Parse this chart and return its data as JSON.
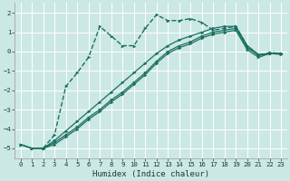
{
  "xlabel": "Humidex (Indice chaleur)",
  "background_color": "#cce8e4",
  "grid_color": "#ffffff",
  "line_color": "#1a7060",
  "xlim": [
    -0.5,
    23.5
  ],
  "ylim": [
    -5.5,
    2.5
  ],
  "xticks": [
    0,
    1,
    2,
    3,
    4,
    5,
    6,
    7,
    8,
    9,
    10,
    11,
    12,
    13,
    14,
    15,
    16,
    17,
    18,
    19,
    20,
    21,
    22,
    23
  ],
  "yticks": [
    -5,
    -4,
    -3,
    -2,
    -1,
    0,
    1,
    2
  ],
  "line1_x": [
    0,
    1,
    2,
    3,
    4,
    5,
    6,
    7,
    8,
    9,
    10,
    11,
    12,
    13,
    14,
    15,
    16,
    17,
    18,
    19,
    20,
    21,
    22,
    23
  ],
  "line1_y": [
    -4.8,
    -5.0,
    -5.0,
    -4.6,
    -4.1,
    -3.6,
    -3.1,
    -2.6,
    -2.1,
    -1.6,
    -1.1,
    -0.6,
    -0.1,
    0.3,
    0.6,
    0.8,
    1.0,
    1.2,
    1.3,
    1.3,
    0.3,
    -0.15,
    -0.1,
    -0.15
  ],
  "line2_x": [
    0,
    1,
    2,
    3,
    4,
    5,
    6,
    7,
    8,
    9,
    10,
    11,
    12,
    13,
    14,
    15,
    16,
    17,
    18,
    19,
    20,
    21,
    22,
    23
  ],
  "line2_y": [
    -4.8,
    -5.0,
    -5.0,
    -4.7,
    -4.3,
    -3.9,
    -3.4,
    -3.0,
    -2.5,
    -2.1,
    -1.6,
    -1.1,
    -0.5,
    0.0,
    0.3,
    0.5,
    0.8,
    1.0,
    1.1,
    1.2,
    0.2,
    -0.2,
    -0.1,
    -0.1
  ],
  "line3_x": [
    0,
    1,
    2,
    3,
    4,
    5,
    6,
    7,
    8,
    9,
    10,
    11,
    12,
    13,
    14,
    15,
    16,
    17,
    18,
    19,
    20,
    21,
    22,
    23
  ],
  "line3_y": [
    -4.8,
    -5.0,
    -5.0,
    -4.8,
    -4.4,
    -4.0,
    -3.5,
    -3.1,
    -2.6,
    -2.2,
    -1.7,
    -1.2,
    -0.6,
    -0.1,
    0.2,
    0.4,
    0.7,
    0.9,
    1.0,
    1.1,
    0.1,
    -0.3,
    -0.1,
    -0.1
  ],
  "line4_x": [
    2,
    3,
    4,
    5,
    6,
    7,
    8,
    9,
    10,
    11,
    12,
    13,
    14,
    15,
    16,
    17,
    18,
    19,
    20,
    21,
    22,
    23
  ],
  "line4_y": [
    -5.0,
    -4.3,
    -1.8,
    -1.1,
    -0.3,
    1.3,
    0.8,
    0.3,
    0.3,
    1.2,
    1.9,
    1.6,
    1.6,
    1.7,
    1.5,
    1.1,
    1.2,
    1.3,
    0.3,
    -0.2,
    -0.05,
    -0.1
  ],
  "line4_dashed": true
}
